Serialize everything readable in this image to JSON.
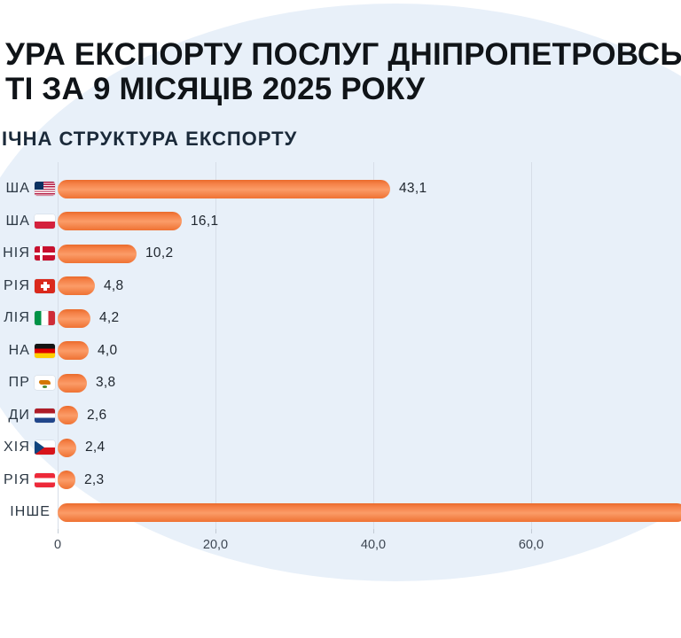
{
  "header": {
    "title_line1": "УРА ЕКСПОРТУ ПОСЛУГ ДНІПРОПЕТРОВСЬКО",
    "title_line2": "ТІ ЗА 9 МІСЯЦІВ 2025 РОКУ",
    "subtitle": "ІЧНА СТРУКТУРА ЕКСПОРТУ"
  },
  "colors": {
    "background": "#ffffff",
    "background_blob": "#e8f0f9",
    "gridline": "#d7dee8",
    "title_text": "#101418",
    "subtitle_text": "#1b2a3a",
    "bar_top": "#ea6a2b",
    "bar_highlight": "#f58147",
    "bar_middle": "#fb9c68",
    "bar_bottom": "#ef7233"
  },
  "chart_data": {
    "type": "bar",
    "orientation": "horizontal",
    "title": "ІЧНА СТРУКТУРА ЕКСПОРТУ",
    "xlabel": "",
    "ylabel": "",
    "xlim": [
      0,
      79
    ],
    "grid": "vertical",
    "legend": "none",
    "x_ticks": [
      {
        "value": 0,
        "label": "0"
      },
      {
        "value": 20,
        "label": "20,0"
      },
      {
        "value": 40,
        "label": "40,0"
      },
      {
        "value": 60,
        "label": "60,0"
      }
    ],
    "rows": [
      {
        "label": "ША",
        "flag": "usa",
        "value": 43.1,
        "value_label": "43,1",
        "clipped": false
      },
      {
        "label": "ША",
        "flag": "poland",
        "value": 16.1,
        "value_label": "16,1",
        "clipped": false
      },
      {
        "label": "НІЯ",
        "flag": "denmark",
        "value": 10.2,
        "value_label": "10,2",
        "clipped": false
      },
      {
        "label": "РІЯ",
        "flag": "switzerland",
        "value": 4.8,
        "value_label": "4,8",
        "clipped": false
      },
      {
        "label": "ЛІЯ",
        "flag": "italy",
        "value": 4.2,
        "value_label": "4,2",
        "clipped": false
      },
      {
        "label": "НА",
        "flag": "germany",
        "value": 4.0,
        "value_label": "4,0",
        "clipped": false
      },
      {
        "label": "ПР",
        "flag": "cyprus",
        "value": 3.8,
        "value_label": "3,8",
        "clipped": false
      },
      {
        "label": "ДИ",
        "flag": "netherlands",
        "value": 2.6,
        "value_label": "2,6",
        "clipped": false
      },
      {
        "label": "ХІЯ",
        "flag": "czechia",
        "value": 2.4,
        "value_label": "2,4",
        "clipped": false
      },
      {
        "label": "РІЯ",
        "flag": "austria",
        "value": 2.3,
        "value_label": "2,3",
        "clipped": false
      },
      {
        "label": "ІНШЕ",
        "flag": null,
        "value": 81.5,
        "value_label": "",
        "clipped": true
      }
    ]
  }
}
